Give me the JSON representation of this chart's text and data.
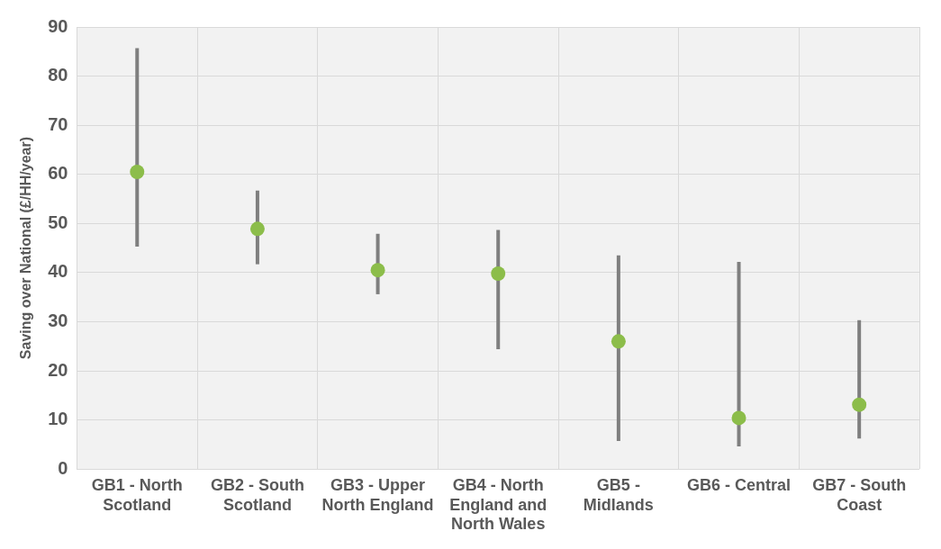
{
  "chart_data": {
    "type": "scatter",
    "ylabel": "Saving over National (£/HH/year)",
    "categories": [
      "GB1 - North Scotland",
      "GB2 - South Scotland",
      "GB3 - Upper North England",
      "GB4 - North England and North Wales",
      "GB5 - Midlands",
      "GB6 - Central",
      "GB7 - South Coast"
    ],
    "series": [
      {
        "color": "#8cbd4a",
        "values": [
          60.5,
          48.9,
          40.5,
          39.8,
          26.0,
          10.4,
          13.1
        ],
        "errors": [
          [
            45.3,
            85.7
          ],
          [
            41.7,
            56.7
          ],
          [
            35.6,
            47.9
          ],
          [
            24.4,
            48.7
          ],
          [
            5.7,
            43.5
          ],
          [
            4.6,
            42.2
          ],
          [
            6.2,
            30.3
          ]
        ]
      }
    ],
    "ylim": [
      0,
      90
    ],
    "yticks": [
      0,
      10,
      20,
      30,
      40,
      50,
      60,
      70,
      80,
      90
    ],
    "grid": true,
    "marker": "circle"
  }
}
